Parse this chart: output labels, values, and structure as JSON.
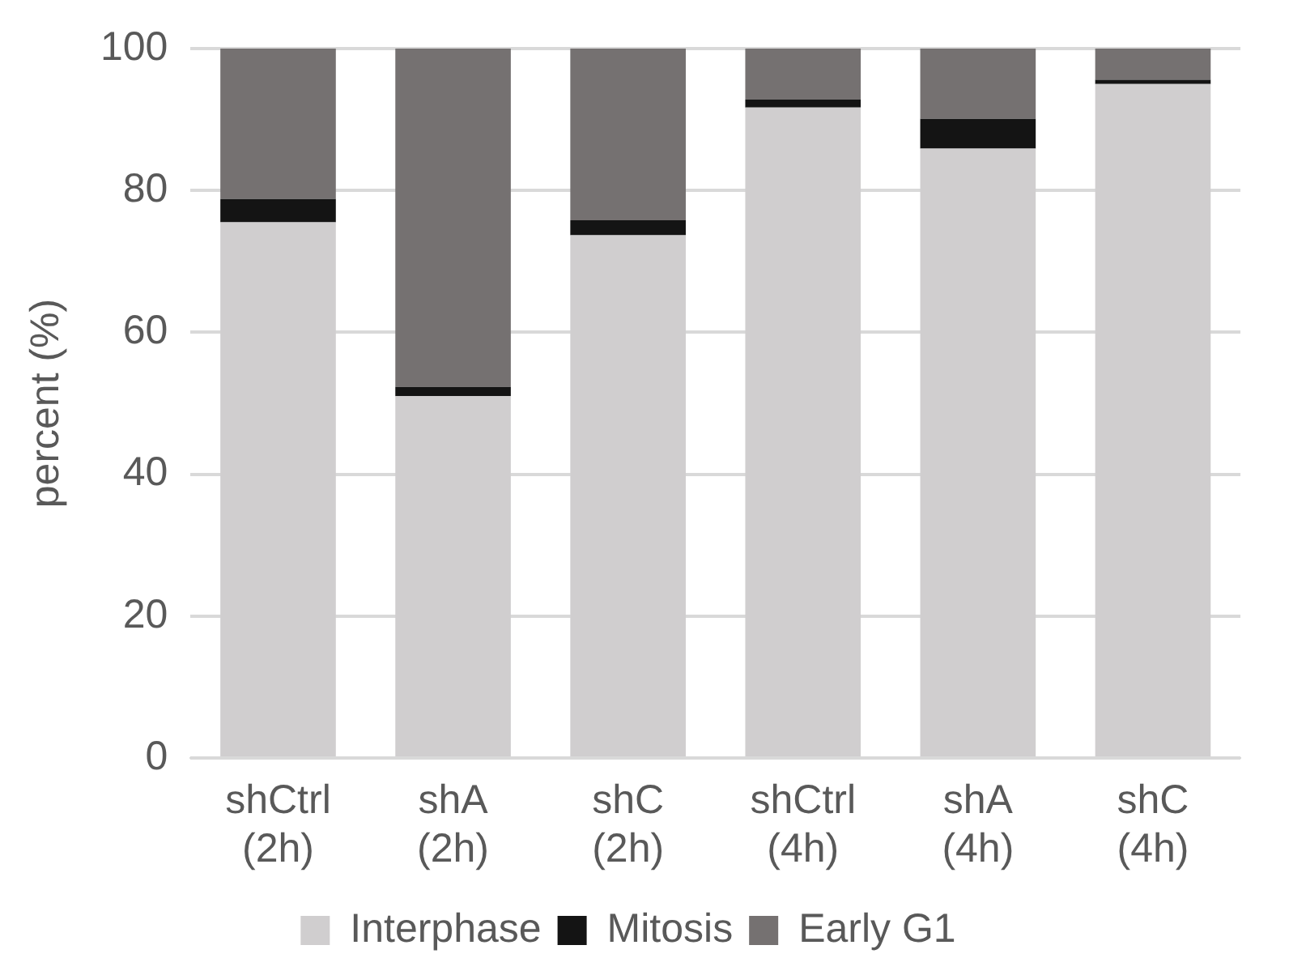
{
  "chart_data": {
    "type": "bar",
    "stacked": true,
    "ylabel": "percent (%)",
    "categories": [
      "shCtrl\n(2h)",
      "shA\n(2h)",
      "shC\n(2h)",
      "shCtrl\n(4h)",
      "shA\n(4h)",
      "shC\n(4h)"
    ],
    "series": [
      {
        "name": "Interphase",
        "color": "#d0cecf",
        "values": [
          75.5,
          51,
          73.7,
          91.7,
          85.9,
          95
        ]
      },
      {
        "name": "Mitosis",
        "color": "#141414",
        "values": [
          3.3,
          1.3,
          2.1,
          1.1,
          4.2,
          0.6
        ]
      },
      {
        "name": "Early G1",
        "color": "#757171",
        "values": [
          21.2,
          47.7,
          24.2,
          7.2,
          9.9,
          4.4
        ]
      }
    ],
    "ylim": [
      0,
      100
    ],
    "yticks": [
      0,
      20,
      40,
      60,
      80,
      100
    ],
    "grid": "y",
    "legend": "bottom"
  }
}
